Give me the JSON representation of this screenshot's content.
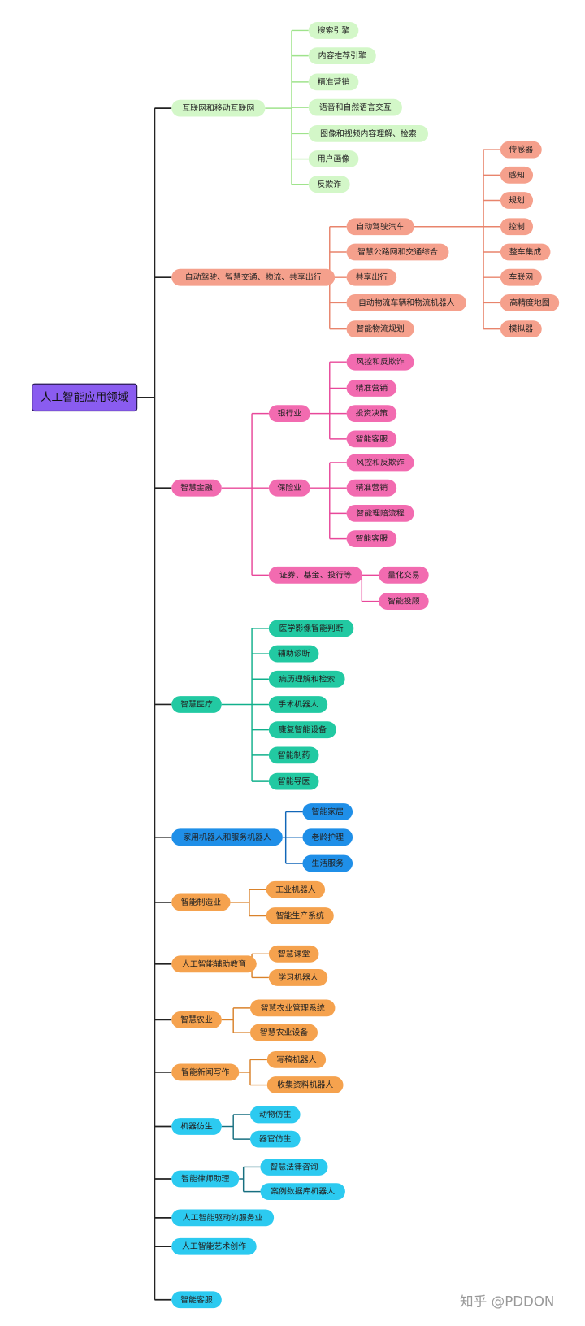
{
  "root": "人工智能应用领域",
  "branches": [
    {
      "label": "互联网和移动互联网",
      "children": [
        {
          "label": "搜索引擎"
        },
        {
          "label": "内容推荐引擎"
        },
        {
          "label": "精准营销"
        },
        {
          "label": "语音和自然语言交互"
        },
        {
          "label": "图像和视频内容理解、检索"
        },
        {
          "label": "用户画像"
        },
        {
          "label": "反欺诈"
        }
      ]
    },
    {
      "label": "自动驾驶、智慧交通、物流、共享出行",
      "children": [
        {
          "label": "自动驾驶汽车",
          "children": [
            {
              "label": "传感器"
            },
            {
              "label": "感知"
            },
            {
              "label": "规划"
            },
            {
              "label": "控制"
            },
            {
              "label": "整车集成"
            },
            {
              "label": "车联网"
            },
            {
              "label": "高精度地图"
            },
            {
              "label": "模拟器"
            }
          ]
        },
        {
          "label": "智慧公路网和交通综合"
        },
        {
          "label": "共享出行"
        },
        {
          "label": "自动物流车辆和物流机器人"
        },
        {
          "label": "智能物流规划"
        }
      ]
    },
    {
      "label": "智慧金融",
      "children": [
        {
          "label": "银行业",
          "children": [
            {
              "label": "风控和反欺诈"
            },
            {
              "label": "精准营销"
            },
            {
              "label": "投资决策"
            },
            {
              "label": "智能客服"
            }
          ]
        },
        {
          "label": "保险业",
          "children": [
            {
              "label": "风控和反欺诈"
            },
            {
              "label": "精准营销"
            },
            {
              "label": "智能理赔流程"
            },
            {
              "label": "智能客服"
            }
          ]
        },
        {
          "label": "证券、基金、投行等",
          "children": [
            {
              "label": "量化交易"
            },
            {
              "label": "智能投顾"
            }
          ]
        }
      ]
    },
    {
      "label": "智慧医疗",
      "children": [
        {
          "label": "医学影像智能判断"
        },
        {
          "label": "辅助诊断"
        },
        {
          "label": "病历理解和检索"
        },
        {
          "label": "手术机器人"
        },
        {
          "label": "康复智能设备"
        },
        {
          "label": "智能制药"
        },
        {
          "label": "智能导医"
        }
      ]
    },
    {
      "label": "家用机器人和服务机器人",
      "children": [
        {
          "label": "智能家居"
        },
        {
          "label": "老龄护理"
        },
        {
          "label": "生活服务"
        }
      ]
    },
    {
      "label": "智能制造业",
      "children": [
        {
          "label": "工业机器人"
        },
        {
          "label": "智能生产系统"
        }
      ]
    },
    {
      "label": "人工智能辅助教育",
      "children": [
        {
          "label": "智慧课堂"
        },
        {
          "label": "学习机器人"
        }
      ]
    },
    {
      "label": "智慧农业",
      "children": [
        {
          "label": "智慧农业管理系统"
        },
        {
          "label": "智慧农业设备"
        }
      ]
    },
    {
      "label": "智能新闻写作",
      "children": [
        {
          "label": "写稿机器人"
        },
        {
          "label": "收集资料机器人"
        }
      ]
    },
    {
      "label": "机器仿生",
      "children": [
        {
          "label": "动物仿生"
        },
        {
          "label": "器官仿生"
        }
      ]
    },
    {
      "label": "智能律师助理",
      "children": [
        {
          "label": "智慧法律咨询"
        },
        {
          "label": "案例数据库机器人"
        }
      ]
    },
    {
      "label": "人工智能驱动的服务业"
    },
    {
      "label": "人工智能艺术创作"
    },
    {
      "label": "智能客服"
    }
  ],
  "watermark": "知乎 @PDDON"
}
